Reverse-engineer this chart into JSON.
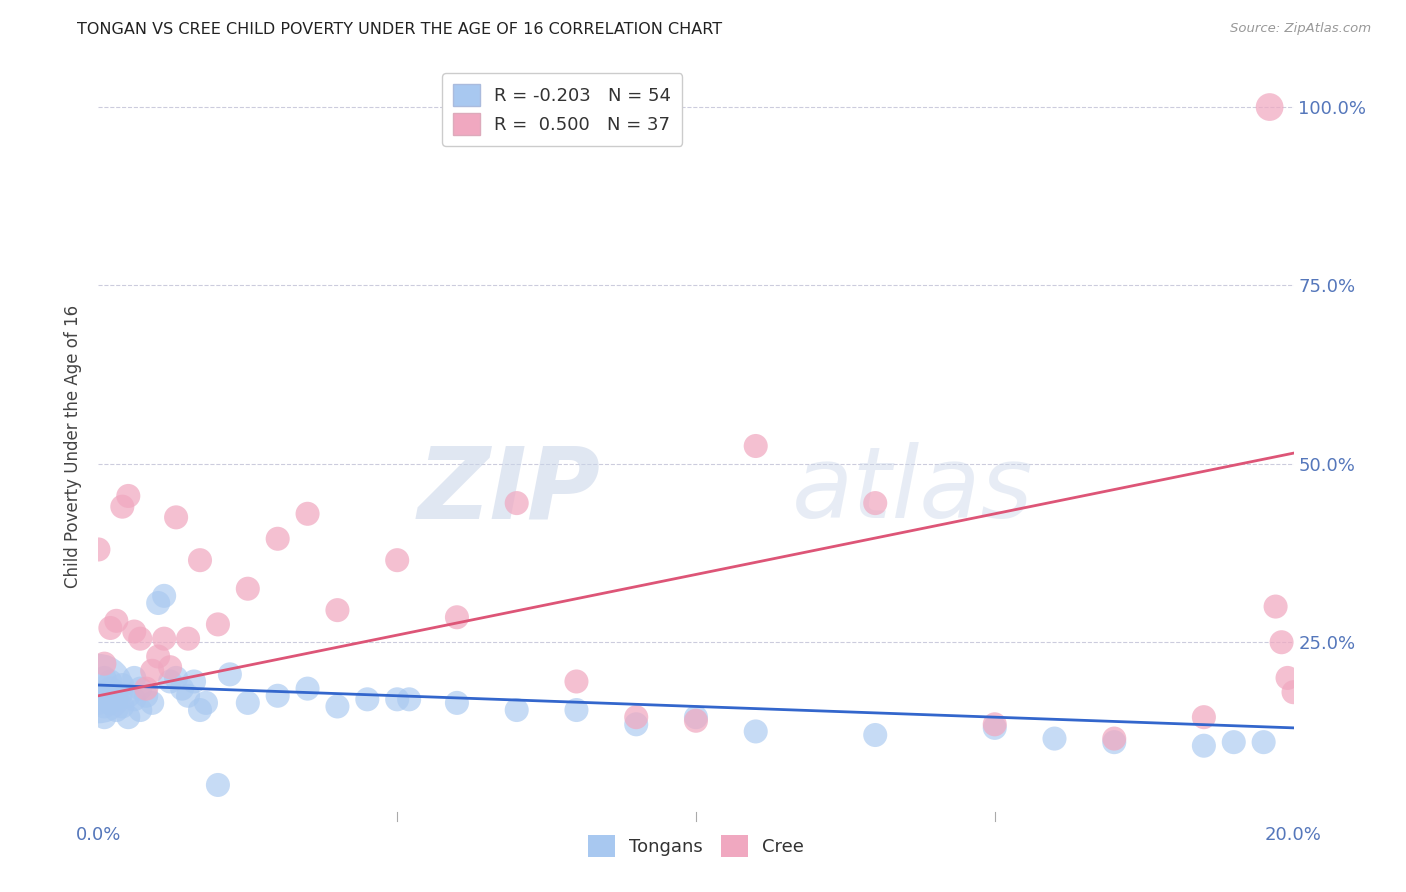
{
  "title": "TONGAN VS CREE CHILD POVERTY UNDER THE AGE OF 16 CORRELATION CHART",
  "source": "Source: ZipAtlas.com",
  "ylabel": "Child Poverty Under the Age of 16",
  "watermark_zip": "ZIP",
  "watermark_atlas": "atlas",
  "legend_entries": [
    {
      "label": "R = -0.203   N = 54",
      "color": "#A8C8F0"
    },
    {
      "label": "R =  0.500   N = 37",
      "color": "#F0A8C0"
    }
  ],
  "legend_labels": [
    "Tongans",
    "Cree"
  ],
  "tongan_color": "#A8C8F0",
  "cree_color": "#F0A8C0",
  "tongan_line_color": "#3366CC",
  "cree_line_color": "#DD5577",
  "background_color": "#FFFFFF",
  "grid_color": "#CCCCDD",
  "title_color": "#222222",
  "axis_label_color": "#5577BB",
  "ytick_vals": [
    0.25,
    0.5,
    0.75,
    1.0
  ],
  "ytick_labels": [
    "25.0%",
    "50.0%",
    "75.0%",
    "100.0%"
  ],
  "xtick_vals": [
    0.0,
    0.2
  ],
  "xtick_labels": [
    "0.0%",
    "20.0%"
  ],
  "xmin": 0.0,
  "xmax": 0.2,
  "ymin": 0.0,
  "ymax": 1.05,
  "tongan_reg_intercept": 0.19,
  "tongan_reg_slope": -0.3,
  "cree_reg_intercept": 0.175,
  "cree_reg_slope": 1.7,
  "tongan_x": [
    0.0,
    0.0,
    0.0,
    0.001,
    0.001,
    0.001,
    0.001,
    0.002,
    0.002,
    0.002,
    0.003,
    0.003,
    0.003,
    0.004,
    0.004,
    0.005,
    0.005,
    0.006,
    0.006,
    0.007,
    0.007,
    0.008,
    0.009,
    0.01,
    0.011,
    0.012,
    0.013,
    0.014,
    0.015,
    0.016,
    0.017,
    0.018,
    0.02,
    0.022,
    0.025,
    0.03,
    0.035,
    0.04,
    0.045,
    0.05,
    0.052,
    0.06,
    0.07,
    0.08,
    0.09,
    0.1,
    0.11,
    0.13,
    0.15,
    0.16,
    0.17,
    0.185,
    0.19,
    0.195
  ],
  "tongan_y": [
    0.185,
    0.175,
    0.165,
    0.2,
    0.18,
    0.16,
    0.145,
    0.195,
    0.185,
    0.165,
    0.18,
    0.17,
    0.155,
    0.19,
    0.16,
    0.175,
    0.145,
    0.2,
    0.17,
    0.185,
    0.155,
    0.175,
    0.165,
    0.305,
    0.315,
    0.195,
    0.2,
    0.185,
    0.175,
    0.195,
    0.155,
    0.165,
    0.05,
    0.205,
    0.165,
    0.175,
    0.185,
    0.16,
    0.17,
    0.17,
    0.17,
    0.165,
    0.155,
    0.155,
    0.135,
    0.145,
    0.125,
    0.12,
    0.13,
    0.115,
    0.11,
    0.105,
    0.11,
    0.11
  ],
  "tongan_sizes": [
    2500,
    400,
    300,
    300,
    300,
    300,
    300,
    300,
    300,
    300,
    300,
    300,
    300,
    300,
    300,
    300,
    300,
    300,
    300,
    300,
    300,
    300,
    300,
    300,
    300,
    300,
    300,
    300,
    300,
    300,
    300,
    300,
    300,
    300,
    300,
    300,
    300,
    300,
    300,
    300,
    300,
    300,
    300,
    300,
    300,
    300,
    300,
    300,
    300,
    300,
    300,
    300,
    300,
    300
  ],
  "cree_x": [
    0.0,
    0.001,
    0.002,
    0.003,
    0.004,
    0.005,
    0.006,
    0.007,
    0.008,
    0.009,
    0.01,
    0.011,
    0.012,
    0.013,
    0.015,
    0.017,
    0.02,
    0.025,
    0.03,
    0.035,
    0.04,
    0.05,
    0.06,
    0.07,
    0.08,
    0.09,
    0.1,
    0.11,
    0.13,
    0.15,
    0.17,
    0.185,
    0.196,
    0.197,
    0.198,
    0.199,
    0.2
  ],
  "cree_y": [
    0.38,
    0.22,
    0.27,
    0.28,
    0.44,
    0.455,
    0.265,
    0.255,
    0.185,
    0.21,
    0.23,
    0.255,
    0.215,
    0.425,
    0.255,
    0.365,
    0.275,
    0.325,
    0.395,
    0.43,
    0.295,
    0.365,
    0.285,
    0.445,
    0.195,
    0.145,
    0.14,
    0.525,
    0.445,
    0.135,
    0.115,
    0.145,
    1.0,
    0.3,
    0.25,
    0.2,
    0.18
  ],
  "cree_sizes": [
    300,
    300,
    300,
    300,
    300,
    300,
    300,
    300,
    300,
    300,
    300,
    300,
    300,
    300,
    300,
    300,
    300,
    300,
    300,
    300,
    300,
    300,
    300,
    300,
    300,
    300,
    300,
    300,
    300,
    300,
    300,
    300,
    400,
    300,
    300,
    300,
    300
  ]
}
